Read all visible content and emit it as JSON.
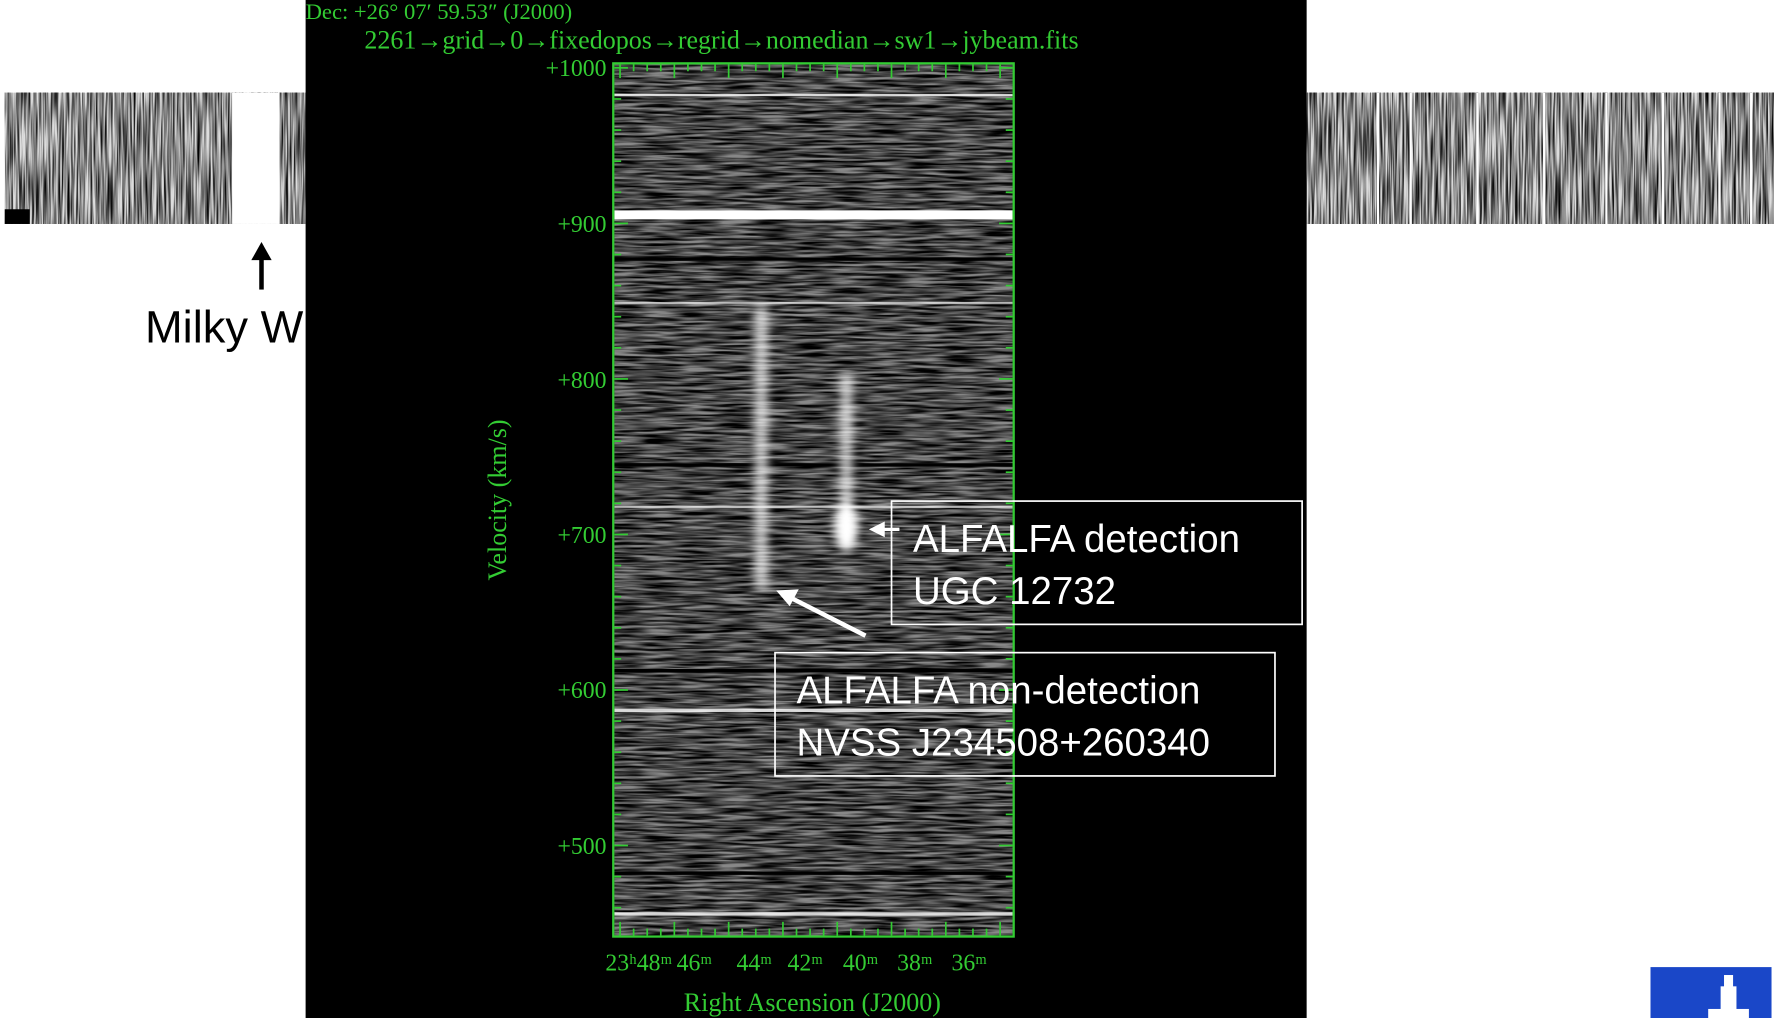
{
  "left_label": "Milky W",
  "image": {
    "header": "Dec: +26° 07′ 59.53″ (J2000)",
    "pipeline": "2261→grid→0→fixedopos→regrid→nomedian→sw1→jybeam.fits",
    "y_axis": {
      "label": "Velocity (km/s)",
      "ticks": [
        "+1000",
        "+900",
        "+800",
        "+700",
        "+600",
        "+500"
      ]
    },
    "x_axis": {
      "label": "Right Ascension (J2000)",
      "ticks": [
        "23ʰ48ᵐ",
        "46ᵐ",
        "44ᵐ",
        "42ᵐ",
        "40ᵐ",
        "38ᵐ",
        "36ᵐ"
      ]
    }
  },
  "callouts": [
    {
      "lines": [
        "ALFALFA detection",
        "UGC 12732"
      ]
    },
    {
      "lines": [
        "ALFALFA non-detection",
        "NVSS J234508+260340"
      ]
    }
  ]
}
